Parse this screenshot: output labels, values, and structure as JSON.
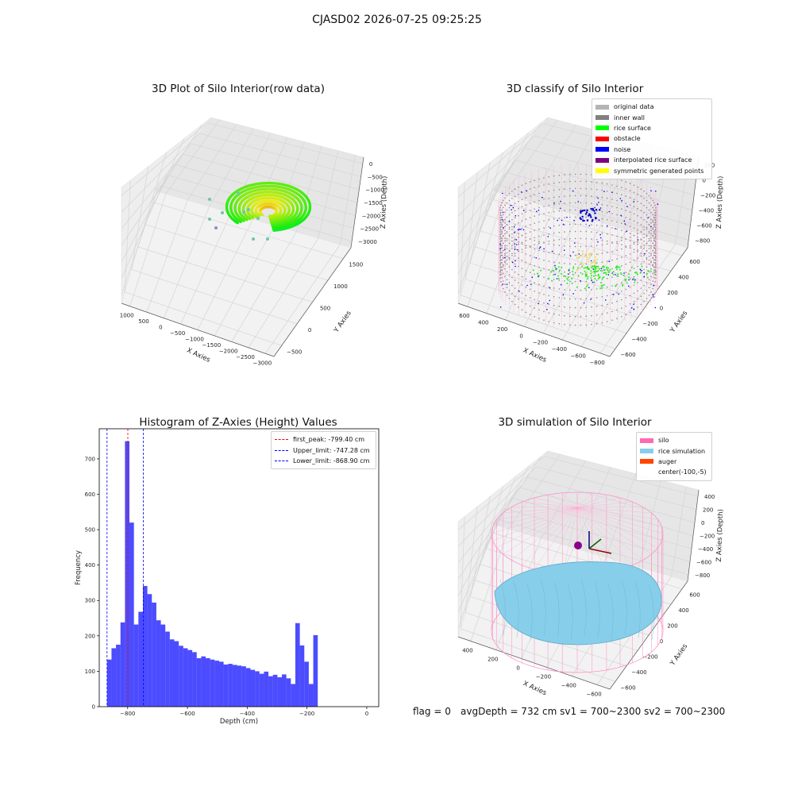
{
  "suptitle": "CJASD02 2026-07-25 09:25:25",
  "panels": {
    "raw": {
      "title": "3D Plot of Silo Interior(row data)",
      "xlabel": "X Axies",
      "ylabel": "Y Axies",
      "zlabel": "Z Axies (Depth)",
      "xticks": [
        "−3000",
        "−2500",
        "−2000",
        "−1500",
        "−1000",
        "−500",
        "0",
        "500",
        "1000"
      ],
      "yticks": [
        "−500",
        "0",
        "500",
        "1000",
        "1500"
      ],
      "zticks": [
        "0",
        "−500",
        "−1000",
        "−1500",
        "−2000",
        "−2500",
        "−3000"
      ]
    },
    "classify": {
      "title": "3D classify of Silo Interior",
      "xlabel": "X Axies",
      "ylabel": "Y Axies",
      "zlabel": "Z Axies (Depth)",
      "xticks": [
        "−800",
        "−600",
        "−400",
        "−200",
        "0",
        "200",
        "400",
        "600"
      ],
      "yticks": [
        "−600",
        "−400",
        "−200",
        "0",
        "200",
        "400",
        "600"
      ],
      "zticks": [
        "200",
        "0",
        "−200",
        "−400",
        "−600",
        "−800"
      ],
      "legend": [
        {
          "label": "original data",
          "color": "#b4b4b4"
        },
        {
          "label": "inner wall",
          "color": "#808080"
        },
        {
          "label": "rice surface",
          "color": "#00ff00"
        },
        {
          "label": "obstacle",
          "color": "#ff0000"
        },
        {
          "label": "noise",
          "color": "#0000ff"
        },
        {
          "label": "interpolated rice surface",
          "color": "#800080"
        },
        {
          "label": "symmetric generated points",
          "color": "#ffff00"
        }
      ]
    },
    "sim": {
      "title": "3D simulation of Silo Interior",
      "xlabel": "X Axies",
      "ylabel": "Y Axies",
      "zlabel": "Z Axies (Depth)",
      "xticks": [
        "−600",
        "−400",
        "−200",
        "0",
        "200",
        "400"
      ],
      "yticks": [
        "−600",
        "−400",
        "−200",
        "0",
        "200",
        "400",
        "600"
      ],
      "zticks": [
        "400",
        "200",
        "0",
        "−200",
        "−400",
        "−600",
        "−800"
      ],
      "legend": [
        {
          "label": "silo",
          "color": "#ff69b4"
        },
        {
          "label": "rice simulation",
          "color": "#87ceeb"
        },
        {
          "label": "auger",
          "color": "#ff4500"
        },
        {
          "label": "center(-100,-5)",
          "color": ""
        }
      ]
    }
  },
  "chart_data": {
    "type": "bar",
    "title": "Histogram of Z-Axies (Height) Values",
    "xlabel": "Depth (cm)",
    "ylabel": "Frequency",
    "xlim": [
      -895,
      40
    ],
    "ylim": [
      0,
      785
    ],
    "xticks": [
      -800,
      -600,
      -400,
      -200,
      0
    ],
    "yticks": [
      0,
      100,
      200,
      300,
      400,
      500,
      600,
      700
    ],
    "bar_color": "#0000ff",
    "bin_start": -869,
    "bin_width": 15,
    "values": [
      133,
      165,
      175,
      238,
      750,
      520,
      232,
      268,
      341,
      318,
      294,
      244,
      232,
      212,
      190,
      185,
      172,
      165,
      160,
      154,
      137,
      142,
      137,
      133,
      130,
      127,
      119,
      121,
      118,
      116,
      114,
      109,
      104,
      100,
      93,
      99,
      86,
      90,
      83,
      91,
      80,
      64,
      236,
      173,
      127,
      64,
      202
    ],
    "lines": [
      {
        "label": "first_peak: -799.40 cm",
        "x": -799.4,
        "color": "#ff0000"
      },
      {
        "label": "Upper_limit: -747.28 cm",
        "x": -747.28,
        "color": "#0000ff"
      },
      {
        "label": "Lower_limit: -868.90 cm",
        "x": -868.9,
        "color": "#0000ff"
      }
    ]
  },
  "footer": {
    "flag": "flag = 0",
    "avg": "avgDepth = 732 cm  sv1 = 700~2300  sv2 = 700~2300"
  }
}
